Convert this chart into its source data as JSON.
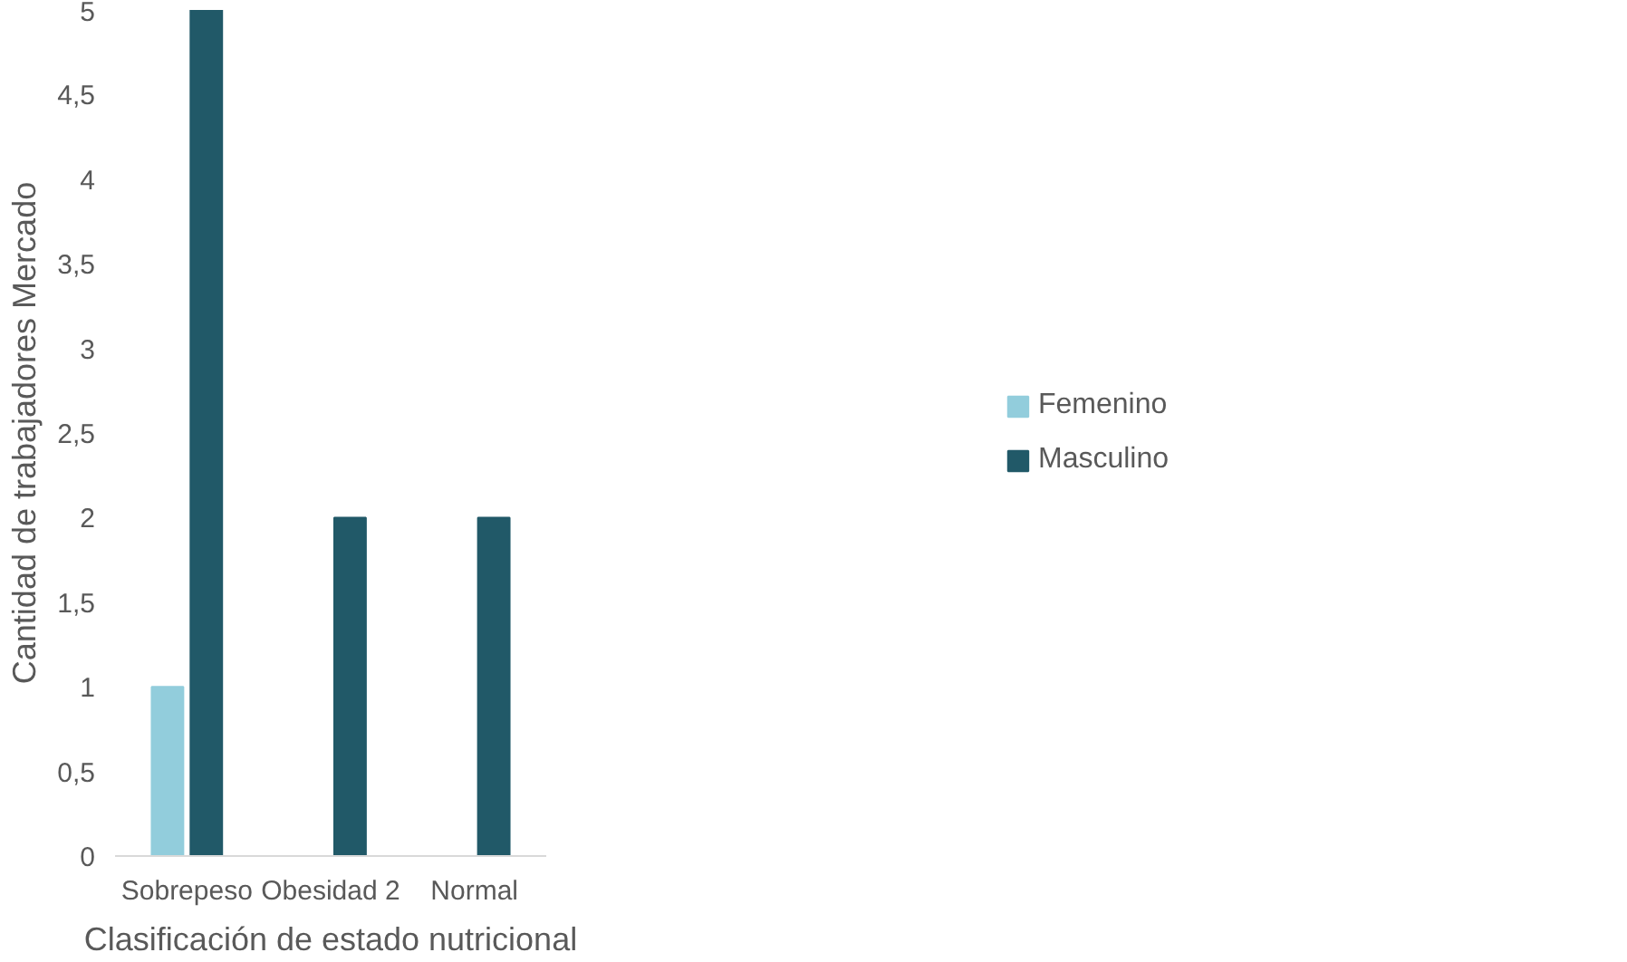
{
  "chart_data": {
    "type": "bar",
    "xlabel": "Clasificación de estado nutricional",
    "ylabel": "Cantidad de trabajadores Mercado",
    "categories": [
      "Sobrepeso",
      "Obesidad 2",
      "Normal"
    ],
    "series": [
      {
        "name": "Femenino",
        "color": "#92cddc",
        "values": [
          1,
          0,
          0
        ]
      },
      {
        "name": "Masculino",
        "color": "#215968",
        "values": [
          5,
          2,
          2
        ]
      }
    ],
    "ylim": [
      0,
      5
    ],
    "yticks": [
      0,
      {
        "value": 0.5,
        "label": "0,5"
      },
      1,
      {
        "value": 1.5,
        "label": "1,5"
      },
      2,
      {
        "value": 2.5,
        "label": "2,5"
      },
      3,
      {
        "value": 3.5,
        "label": "3,5"
      },
      4,
      {
        "value": 4.5,
        "label": "4,5"
      },
      5
    ],
    "grid": false,
    "legend": "right"
  }
}
